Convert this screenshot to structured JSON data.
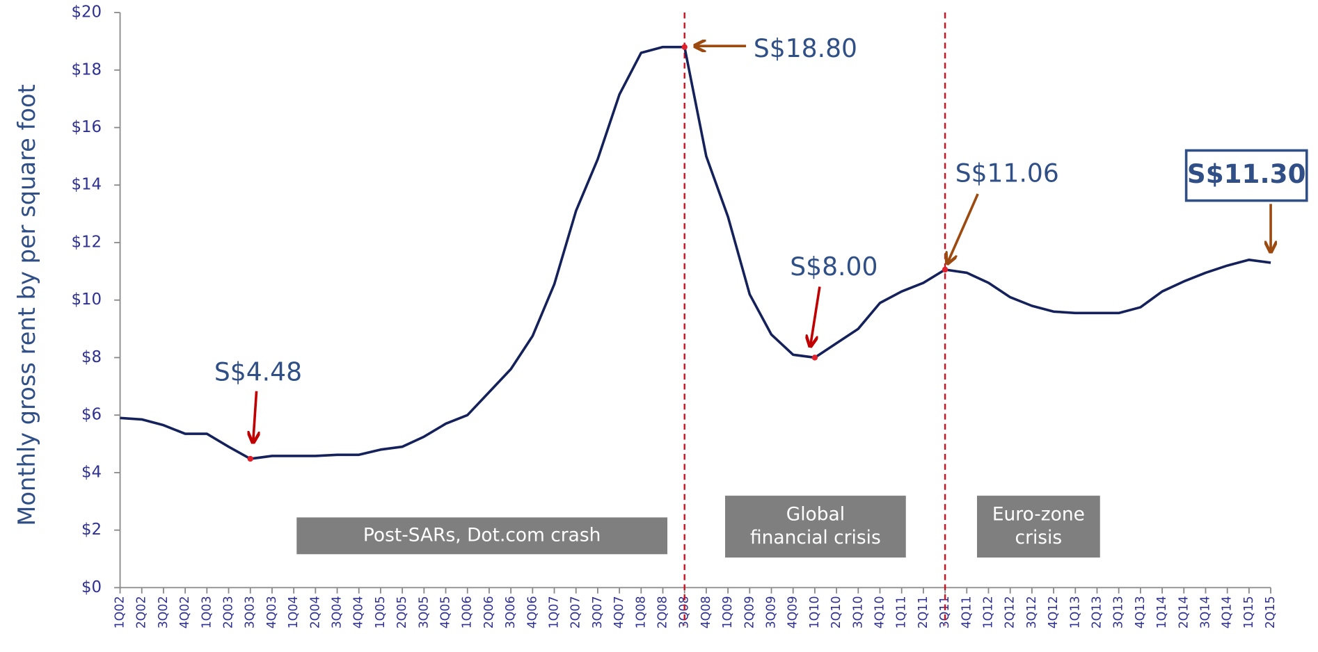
{
  "chart_data": {
    "type": "line",
    "y_label": "Monthly gross rent by per square foot",
    "categories": [
      "1Q02",
      "2Q02",
      "3Q02",
      "4Q02",
      "1Q03",
      "2Q03",
      "3Q03",
      "4Q03",
      "1Q04",
      "2Q04",
      "3Q04",
      "4Q04",
      "1Q05",
      "2Q05",
      "3Q05",
      "4Q05",
      "1Q06",
      "2Q06",
      "3Q06",
      "4Q06",
      "1Q07",
      "2Q07",
      "3Q07",
      "4Q07",
      "1Q08",
      "2Q08",
      "3Q08",
      "4Q08",
      "1Q09",
      "2Q09",
      "3Q09",
      "4Q09",
      "1Q10",
      "2Q10",
      "3Q10",
      "4Q10",
      "1Q11",
      "2Q11",
      "3Q11",
      "4Q11",
      "1Q12",
      "2Q12",
      "3Q12",
      "4Q12",
      "1Q13",
      "2Q13",
      "3Q13",
      "4Q13",
      "1Q14",
      "2Q14",
      "3Q14",
      "4Q14",
      "1Q15",
      "2Q15"
    ],
    "values": [
      5.9,
      5.85,
      5.65,
      5.35,
      5.35,
      4.9,
      4.48,
      4.58,
      4.58,
      4.58,
      4.62,
      4.62,
      4.8,
      4.9,
      5.25,
      5.7,
      6.0,
      6.8,
      7.6,
      8.75,
      10.55,
      13.1,
      14.9,
      17.15,
      18.6,
      18.8,
      18.8,
      15.0,
      12.9,
      10.2,
      8.8,
      8.1,
      8.0,
      8.5,
      9.0,
      9.9,
      10.3,
      10.6,
      11.06,
      10.95,
      10.6,
      10.1,
      9.8,
      9.6,
      9.55,
      9.55,
      9.55,
      9.75,
      10.3,
      10.65,
      10.95,
      11.2,
      11.4,
      11.3
    ],
    "color": "#14215a",
    "ylim": [
      0,
      20
    ],
    "yticks": [
      {
        "value": 0,
        "label": "$0"
      },
      {
        "value": 2,
        "label": "$2"
      },
      {
        "value": 4,
        "label": "$4"
      },
      {
        "value": 6,
        "label": "$6"
      },
      {
        "value": 8,
        "label": "$8"
      },
      {
        "value": 10,
        "label": "$10"
      },
      {
        "value": 12,
        "label": "$12"
      },
      {
        "value": 14,
        "label": "$14"
      },
      {
        "value": 16,
        "label": "$16"
      },
      {
        "value": 18,
        "label": "$18"
      },
      {
        "value": 20,
        "label": "$20"
      }
    ],
    "annotations": [
      "S$4.48",
      "S$18.80",
      "S$8.00",
      "S$11.06",
      "S$11.30"
    ],
    "periods": [
      [
        "Post-SARs, Dot.com crash"
      ],
      [
        "Global",
        "financial crisis"
      ],
      [
        "Euro-zone",
        "crisis"
      ]
    ]
  }
}
